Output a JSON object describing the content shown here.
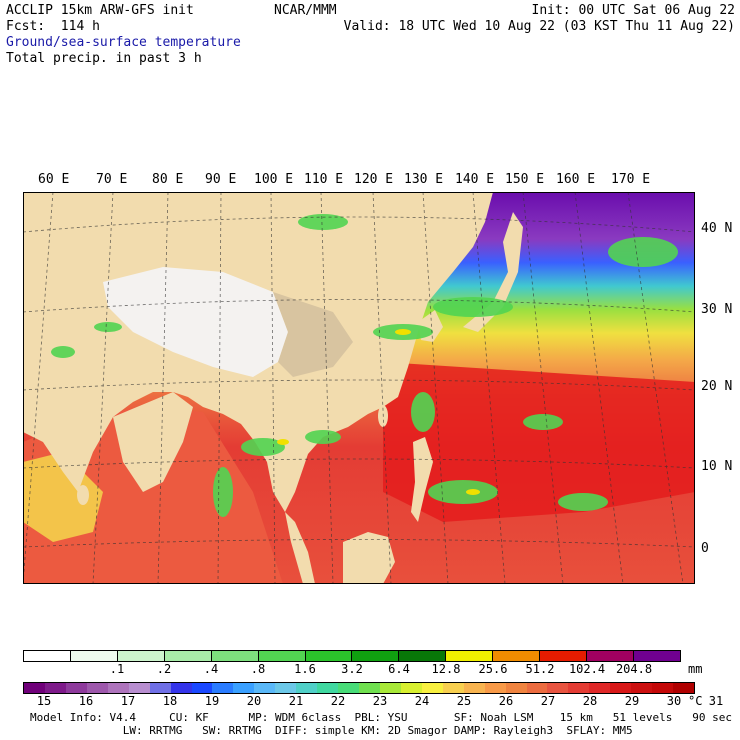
{
  "header": {
    "model": "ACCLIP 15km ARW-GFS init",
    "org": "NCAR/MMM",
    "init": "Init: 00 UTC Sat 06 Aug 22",
    "fcst": "Fcst:  114 h",
    "valid": "Valid: 18 UTC Wed 10 Aug 22 (03 KST Thu 11 Aug 22)",
    "field1": "Ground/sea-surface temperature",
    "field2": "Total precip. in past 3 h"
  },
  "map": {
    "lon_labels": [
      "60 E",
      "70 E",
      "80 E",
      "90 E",
      "100 E",
      "110 E",
      "120 E",
      "130 E",
      "140 E",
      "150 E",
      "160 E",
      "170 E"
    ],
    "lat_labels": [
      "40 N",
      "30 N",
      "20 N",
      "10 N",
      "0"
    ],
    "colors": {
      "land": "#f2dcae",
      "ocean_warm": "#e8503c",
      "ocean_hot": "#e41c1c",
      "ocean_cool": "#f3a14a",
      "north_pacific": "#6a0dad"
    }
  },
  "legend": {
    "precip": {
      "unit": "mm",
      "ticks": [
        ".1",
        ".2",
        ".4",
        ".8",
        "1.6",
        "3.2",
        "6.4",
        "12.8",
        "25.6",
        "51.2",
        "102.4",
        "204.8"
      ],
      "colors": [
        "#ffffff",
        "#eefbee",
        "#cdf4cd",
        "#a8eca8",
        "#7ee07e",
        "#52d452",
        "#2bc42b",
        "#10a010",
        "#087808",
        "#f0f000",
        "#f08c00",
        "#e61c00",
        "#a00060",
        "#700090"
      ]
    },
    "temp": {
      "unit": "°C",
      "ticks": [
        "15",
        "16",
        "17",
        "18",
        "19",
        "20",
        "21",
        "22",
        "23",
        "24",
        "25",
        "26",
        "27",
        "28",
        "29",
        "30",
        "31"
      ],
      "colors": [
        "#70007a",
        "#7e1a8a",
        "#8e3a9c",
        "#9e58ac",
        "#ae74bc",
        "#b88ed0",
        "#7070e6",
        "#3434ea",
        "#1a48ff",
        "#2a7cff",
        "#3aa0ff",
        "#5ab8f8",
        "#6cc8e8",
        "#50d0c8",
        "#40d8a0",
        "#48dc78",
        "#70e050",
        "#a8e838",
        "#d8f030",
        "#f8f040",
        "#f8d050",
        "#f8b450",
        "#f89a48",
        "#f08440",
        "#ec6c40",
        "#e85440",
        "#e43c34",
        "#e02828",
        "#d81818",
        "#cc1010",
        "#c40808",
        "#b00000"
      ]
    }
  },
  "footer": {
    "line1": "Model Info: V4.4     CU: KF      MP: WDM 6class  PBL: YSU       SF: Noah LSM    15 km   51 levels   90 sec",
    "line2": "              LW: RRTMG   SW: RRTMG  DIFF: simple KM: 2D Smagor DAMP: Rayleigh3  SFLAY: MM5"
  }
}
